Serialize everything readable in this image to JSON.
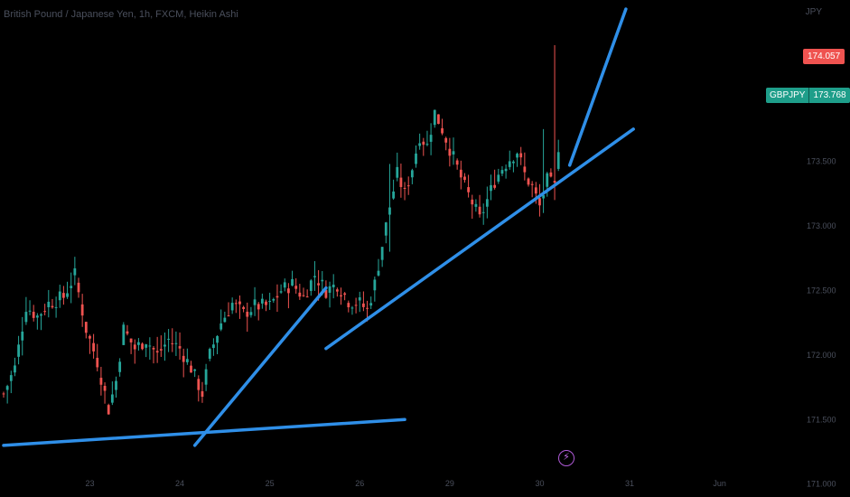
{
  "title": "British Pound / Japanese Yen, 1h, FXCM, Heikin Ashi",
  "currency": "JPY",
  "last_price_label": "174.057",
  "symbol_label": "GBPJPY",
  "symbol_price_label": "173.768",
  "colors": {
    "background": "#000000",
    "bull": "#26a69a",
    "bear": "#ef5350",
    "trendline": "#2f8fe8",
    "axis_text": "#4a4f5c",
    "event_icon": "#b05ad8"
  },
  "icons": {
    "event": "lightning-bolt-icon"
  },
  "chart_data": {
    "type": "candlestick",
    "title": "British Pound / Japanese Yen, 1h, FXCM, Heikin Ashi",
    "ylim": [
      170.9,
      174.75
    ],
    "y_ticks": [
      {
        "value": 171.0,
        "label": "171.000"
      },
      {
        "value": 171.5,
        "label": "171.500"
      },
      {
        "value": 172.0,
        "label": "172.000"
      },
      {
        "value": 172.5,
        "label": "172.500"
      },
      {
        "value": 173.0,
        "label": "173.000"
      },
      {
        "value": 173.5,
        "label": "173.500"
      }
    ],
    "x_ticks": [
      {
        "index": 23,
        "label": "23"
      },
      {
        "index": 47,
        "label": "24"
      },
      {
        "index": 71,
        "label": "25"
      },
      {
        "index": 95,
        "label": "26"
      },
      {
        "index": 119,
        "label": "29"
      },
      {
        "index": 143,
        "label": "30"
      },
      {
        "index": 167,
        "label": "31"
      },
      {
        "index": 191,
        "label": "Jun"
      }
    ],
    "price_path": [
      [
        0,
        171.7
      ],
      [
        3,
        171.9
      ],
      [
        6,
        172.38
      ],
      [
        9,
        172.3
      ],
      [
        12,
        172.4
      ],
      [
        16,
        172.45
      ],
      [
        19,
        172.62
      ],
      [
        22,
        172.2
      ],
      [
        25,
        171.95
      ],
      [
        28,
        171.58
      ],
      [
        30,
        171.8
      ],
      [
        32,
        172.2
      ],
      [
        35,
        172.05
      ],
      [
        38,
        172.12
      ],
      [
        41,
        172.0
      ],
      [
        44,
        172.12
      ],
      [
        47,
        172.05
      ],
      [
        50,
        171.9
      ],
      [
        53,
        171.7
      ],
      [
        55,
        172.0
      ],
      [
        58,
        172.25
      ],
      [
        61,
        172.4
      ],
      [
        64,
        172.32
      ],
      [
        67,
        172.38
      ],
      [
        71,
        172.38
      ],
      [
        74,
        172.5
      ],
      [
        77,
        172.55
      ],
      [
        80,
        172.45
      ],
      [
        83,
        172.62
      ],
      [
        86,
        172.5
      ],
      [
        89,
        172.55
      ],
      [
        92,
        172.42
      ],
      [
        95,
        172.4
      ],
      [
        97,
        172.35
      ],
      [
        99,
        172.55
      ],
      [
        101,
        172.85
      ],
      [
        103,
        173.15
      ],
      [
        105,
        173.4
      ],
      [
        107,
        173.25
      ],
      [
        109,
        173.45
      ],
      [
        111,
        173.7
      ],
      [
        113,
        173.62
      ],
      [
        115,
        173.88
      ],
      [
        117,
        173.75
      ],
      [
        119,
        173.6
      ],
      [
        121,
        173.45
      ],
      [
        123,
        173.3
      ],
      [
        125,
        173.18
      ],
      [
        127,
        173.05
      ],
      [
        129,
        173.2
      ],
      [
        131,
        173.35
      ],
      [
        133,
        173.45
      ],
      [
        135,
        173.52
      ],
      [
        137,
        173.58
      ],
      [
        139,
        173.4
      ],
      [
        141,
        173.3
      ],
      [
        143,
        173.15
      ],
      [
        145,
        173.35
      ],
      [
        147,
        173.3
      ],
      [
        148,
        173.62
      ]
    ],
    "wick_spikes": [
      {
        "index": 147,
        "high": 174.4,
        "low": 173.2
      },
      {
        "index": 144,
        "high": 173.75,
        "low": 173.1
      },
      {
        "index": 103,
        "high": 173.48,
        "low": 172.8
      }
    ],
    "trendlines": [
      {
        "from": [
          0,
          171.3
        ],
        "to": [
          107,
          171.5
        ]
      },
      {
        "from": [
          51,
          171.3
        ],
        "to": [
          86,
          172.52
        ]
      },
      {
        "from": [
          86,
          172.05
        ],
        "to": [
          168,
          173.75
        ]
      },
      {
        "from": [
          151,
          173.47
        ],
        "to": [
          166,
          174.68
        ]
      }
    ]
  }
}
